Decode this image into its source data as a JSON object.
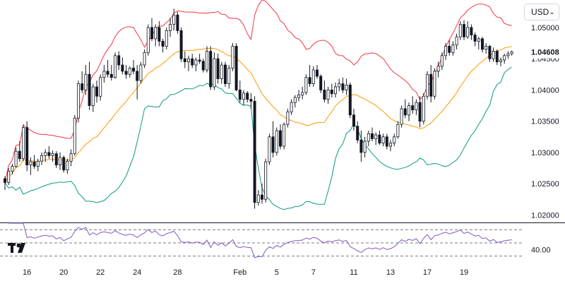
{
  "currency_selector": {
    "label": "USD",
    "icon": "chevron-down-icon"
  },
  "branding": {
    "logo_icon": "tradingview-logo-icon"
  },
  "chart_data": [
    {
      "type": "candlestick",
      "title": "",
      "price_axis_ticks": [
        "1.05000",
        "1.04500",
        "1.04000",
        "1.03500",
        "1.03000",
        "1.02500",
        "1.02000"
      ],
      "price_axis_values": [
        1.05,
        1.045,
        1.04,
        1.035,
        1.03,
        1.025,
        1.02
      ],
      "ylim": [
        1.0188,
        1.0544
      ],
      "last_price": {
        "label": "1.04608",
        "value": 1.04608
      },
      "time_axis_ticks": [
        {
          "label": "16",
          "bar": 6
        },
        {
          "label": "20",
          "bar": 16
        },
        {
          "label": "22",
          "bar": 26
        },
        {
          "label": "24",
          "bar": 36
        },
        {
          "label": "28",
          "bar": 47
        },
        {
          "label": "Feb",
          "bar": 64
        },
        {
          "label": "5",
          "bar": 74
        },
        {
          "label": "7",
          "bar": 84
        },
        {
          "label": "11",
          "bar": 95
        },
        {
          "label": "13",
          "bar": 105
        },
        {
          "label": "17",
          "bar": 115
        },
        {
          "label": "19",
          "bar": 125
        }
      ],
      "candles": [
        [
          1.0258,
          1.0262,
          1.024,
          1.0252
        ],
        [
          1.0252,
          1.0275,
          1.0248,
          1.027
        ],
        [
          1.027,
          1.0282,
          1.0265,
          1.0278
        ],
        [
          1.0278,
          1.0308,
          1.0275,
          1.0302
        ],
        [
          1.0302,
          1.0318,
          1.0285,
          1.029
        ],
        [
          1.029,
          1.0345,
          1.0286,
          1.034
        ],
        [
          1.034,
          1.035,
          1.027,
          1.028
        ],
        [
          1.028,
          1.0292,
          1.0264,
          1.0285
        ],
        [
          1.0285,
          1.0296,
          1.0274,
          1.0278
        ],
        [
          1.0278,
          1.029,
          1.027,
          1.0286
        ],
        [
          1.0286,
          1.03,
          1.028,
          1.0295
        ],
        [
          1.0295,
          1.0305,
          1.0285,
          1.03
        ],
        [
          1.03,
          1.031,
          1.029,
          1.0295
        ],
        [
          1.0295,
          1.0303,
          1.0285,
          1.0298
        ],
        [
          1.0298,
          1.0302,
          1.0275,
          1.028
        ],
        [
          1.028,
          1.03,
          1.0272,
          1.0292
        ],
        [
          1.0292,
          1.0295,
          1.0268,
          1.0272
        ],
        [
          1.0272,
          1.029,
          1.0266,
          1.0286
        ],
        [
          1.0286,
          1.0305,
          1.0278,
          1.0298
        ],
        [
          1.0298,
          1.036,
          1.0295,
          1.0355
        ],
        [
          1.0355,
          1.0415,
          1.0348,
          1.041
        ],
        [
          1.041,
          1.043,
          1.0395,
          1.04
        ],
        [
          1.04,
          1.044,
          1.0392,
          1.0425
        ],
        [
          1.0425,
          1.0445,
          1.0368,
          1.0375
        ],
        [
          1.0375,
          1.041,
          1.0365,
          1.0405
        ],
        [
          1.0405,
          1.0415,
          1.038,
          1.039
        ],
        [
          1.039,
          1.0425,
          1.0383,
          1.042
        ],
        [
          1.042,
          1.044,
          1.0412,
          1.043
        ],
        [
          1.043,
          1.0448,
          1.042,
          1.0425
        ],
        [
          1.0425,
          1.044,
          1.0415,
          1.042
        ],
        [
          1.042,
          1.046,
          1.0418,
          1.0455
        ],
        [
          1.0455,
          1.0462,
          1.0432,
          1.044
        ],
        [
          1.044,
          1.0452,
          1.0425,
          1.043
        ],
        [
          1.043,
          1.044,
          1.0418,
          1.0425
        ],
        [
          1.0425,
          1.0438,
          1.042,
          1.0435
        ],
        [
          1.0435,
          1.0448,
          1.0425,
          1.043
        ],
        [
          1.043,
          1.044,
          1.0385,
          1.0415
        ],
        [
          1.0415,
          1.0445,
          1.041,
          1.044
        ],
        [
          1.044,
          1.0465,
          1.0435,
          1.046
        ],
        [
          1.046,
          1.0505,
          1.0455,
          1.05
        ],
        [
          1.05,
          1.0515,
          1.0478,
          1.0482
        ],
        [
          1.0482,
          1.0505,
          1.047,
          1.05
        ],
        [
          1.05,
          1.051,
          1.047,
          1.0478
        ],
        [
          1.0478,
          1.0482,
          1.046,
          1.047
        ],
        [
          1.047,
          1.05,
          1.0465,
          1.0495
        ],
        [
          1.0495,
          1.0515,
          1.0485,
          1.0505
        ],
        [
          1.0505,
          1.053,
          1.0495,
          1.052
        ],
        [
          1.052,
          1.0525,
          1.049,
          1.0495
        ],
        [
          1.0495,
          1.05,
          1.0445,
          1.045
        ],
        [
          1.045,
          1.0462,
          1.0435,
          1.0445
        ],
        [
          1.0445,
          1.0455,
          1.043,
          1.045
        ],
        [
          1.045,
          1.0458,
          1.0435,
          1.044
        ],
        [
          1.044,
          1.0452,
          1.043,
          1.0448
        ],
        [
          1.0448,
          1.0458,
          1.0442,
          1.0446
        ],
        [
          1.0446,
          1.045,
          1.0428,
          1.0432
        ],
        [
          1.0432,
          1.047,
          1.0428,
          1.0462
        ],
        [
          1.0462,
          1.047,
          1.04,
          1.0405
        ],
        [
          1.0405,
          1.046,
          1.04,
          1.045
        ],
        [
          1.045,
          1.0458,
          1.041,
          1.0418
        ],
        [
          1.0418,
          1.0445,
          1.041,
          1.044
        ],
        [
          1.044,
          1.0445,
          1.0405,
          1.041
        ],
        [
          1.041,
          1.044,
          1.0402,
          1.0435
        ],
        [
          1.0435,
          1.0475,
          1.043,
          1.047
        ],
        [
          1.047,
          1.0475,
          1.0398,
          1.04
        ],
        [
          1.04,
          1.0415,
          1.038,
          1.0385
        ],
        [
          1.0385,
          1.04,
          1.0375,
          1.0395
        ],
        [
          1.0395,
          1.0398,
          1.038,
          1.0385
        ],
        [
          1.0385,
          1.0395,
          1.037,
          1.0382
        ],
        [
          1.0382,
          1.039,
          1.021,
          1.022
        ],
        [
          1.022,
          1.024,
          1.0215,
          1.0232
        ],
        [
          1.0232,
          1.025,
          1.0218,
          1.0225
        ],
        [
          1.0225,
          1.029,
          1.022,
          1.0285
        ],
        [
          1.0285,
          1.033,
          1.028,
          1.0325
        ],
        [
          1.0325,
          1.035,
          1.0292,
          1.03
        ],
        [
          1.03,
          1.034,
          1.0295,
          1.0335
        ],
        [
          1.0335,
          1.0345,
          1.0305,
          1.031
        ],
        [
          1.031,
          1.0348,
          1.0305,
          1.0345
        ],
        [
          1.0345,
          1.037,
          1.034,
          1.0365
        ],
        [
          1.0365,
          1.0385,
          1.036,
          1.038
        ],
        [
          1.038,
          1.0392,
          1.0372,
          1.0388
        ],
        [
          1.0388,
          1.04,
          1.0382,
          1.0392
        ],
        [
          1.0392,
          1.0405,
          1.0385,
          1.0396
        ],
        [
          1.0396,
          1.0425,
          1.0392,
          1.042
        ],
        [
          1.042,
          1.044,
          1.0405,
          1.041
        ],
        [
          1.041,
          1.0438,
          1.0405,
          1.0432
        ],
        [
          1.0432,
          1.044,
          1.0418,
          1.0422
        ],
        [
          1.0422,
          1.0425,
          1.0395,
          1.04
        ],
        [
          1.04,
          1.0415,
          1.038,
          1.0385
        ],
        [
          1.0385,
          1.0405,
          1.0378,
          1.04
        ],
        [
          1.04,
          1.041,
          1.0388,
          1.0394
        ],
        [
          1.0394,
          1.0412,
          1.0388,
          1.0405
        ],
        [
          1.0405,
          1.0418,
          1.0398,
          1.041
        ],
        [
          1.041,
          1.042,
          1.0395,
          1.04
        ],
        [
          1.04,
          1.0418,
          1.0392,
          1.0408
        ],
        [
          1.0408,
          1.0412,
          1.0355,
          1.036
        ],
        [
          1.036,
          1.037,
          1.0335,
          1.0342
        ],
        [
          1.0342,
          1.035,
          1.0315,
          1.032
        ],
        [
          1.032,
          1.0335,
          1.0285,
          1.03
        ],
        [
          1.03,
          1.0325,
          1.0292,
          1.0318
        ],
        [
          1.0318,
          1.0335,
          1.031,
          1.033
        ],
        [
          1.033,
          1.034,
          1.0318,
          1.0322
        ],
        [
          1.0322,
          1.0332,
          1.0312,
          1.0328
        ],
        [
          1.0328,
          1.0335,
          1.0312,
          1.0315
        ],
        [
          1.0315,
          1.033,
          1.031,
          1.0325
        ],
        [
          1.0325,
          1.033,
          1.0305,
          1.031
        ],
        [
          1.031,
          1.032,
          1.0302,
          1.0315
        ],
        [
          1.0315,
          1.033,
          1.031,
          1.0325
        ],
        [
          1.0325,
          1.035,
          1.0322,
          1.0345
        ],
        [
          1.0345,
          1.0375,
          1.034,
          1.037
        ],
        [
          1.037,
          1.0385,
          1.0355,
          1.036
        ],
        [
          1.036,
          1.038,
          1.035,
          1.0375
        ],
        [
          1.0375,
          1.039,
          1.0362,
          1.0368
        ],
        [
          1.0368,
          1.0385,
          1.036,
          1.038
        ],
        [
          1.038,
          1.039,
          1.034,
          1.035
        ],
        [
          1.035,
          1.0395,
          1.0345,
          1.039
        ],
        [
          1.039,
          1.043,
          1.0385,
          1.0425
        ],
        [
          1.0425,
          1.044,
          1.038,
          1.039
        ],
        [
          1.039,
          1.0435,
          1.0385,
          1.043
        ],
        [
          1.043,
          1.0445,
          1.042,
          1.0438
        ],
        [
          1.0438,
          1.046,
          1.0432,
          1.0455
        ],
        [
          1.0455,
          1.0475,
          1.0448,
          1.047
        ],
        [
          1.047,
          1.048,
          1.0455,
          1.046
        ],
        [
          1.046,
          1.0478,
          1.0455,
          1.0472
        ],
        [
          1.0472,
          1.049,
          1.0465,
          1.0485
        ],
        [
          1.0485,
          1.051,
          1.048,
          1.0505
        ],
        [
          1.0505,
          1.0512,
          1.048,
          1.0485
        ],
        [
          1.0485,
          1.051,
          1.0482,
          1.05
        ],
        [
          1.05,
          1.0505,
          1.048,
          1.0488
        ],
        [
          1.0488,
          1.0492,
          1.047,
          1.0478
        ],
        [
          1.0478,
          1.0485,
          1.0465,
          1.0482
        ],
        [
          1.0482,
          1.0485,
          1.046,
          1.0465
        ],
        [
          1.0465,
          1.0475,
          1.0458,
          1.047
        ],
        [
          1.047,
          1.0472,
          1.0445,
          1.045
        ],
        [
          1.045,
          1.0468,
          1.0445,
          1.0462
        ],
        [
          1.0462,
          1.0465,
          1.044,
          1.0445
        ],
        [
          1.0445,
          1.0452,
          1.0438,
          1.0448
        ],
        [
          1.0448,
          1.0458,
          1.0442,
          1.0455
        ],
        [
          1.0455,
          1.0462,
          1.045,
          1.0458
        ],
        [
          1.0458,
          1.0463,
          1.0455,
          1.0461
        ]
      ],
      "indicators": [
        {
          "name": "",
          "style": "upper-band",
          "color": "#f23645"
        },
        {
          "name": "",
          "style": "basis",
          "color": "#ff9800"
        },
        {
          "name": "",
          "style": "lower-band",
          "color": "#089981"
        }
      ],
      "colors": {
        "up": "#ffffff",
        "down": "#131722",
        "wick": "#131722",
        "grid": "#ffffff"
      },
      "grid": false
    },
    {
      "type": "line",
      "title": "",
      "ylim": [
        20,
        80
      ],
      "levels": [
        70,
        50,
        30
      ],
      "tick_labels": [
        {
          "label": "40.00",
          "value": 40
        }
      ],
      "color": "#7e57c2",
      "period": 14
    }
  ]
}
